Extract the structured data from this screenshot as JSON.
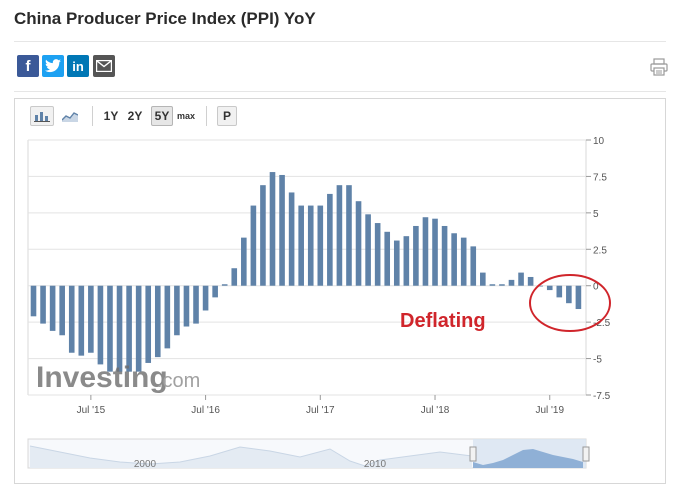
{
  "page": {
    "title": "China Producer Price Index (PPI) YoY"
  },
  "toolbar": {
    "chart_types": [
      "bar-chart-icon",
      "area-chart-icon"
    ],
    "ranges": [
      "1Y",
      "2Y",
      "5Y",
      "max"
    ],
    "active_range": "5Y",
    "p_label": "P"
  },
  "share": [
    "facebook-icon",
    "twitter-icon",
    "linkedin-icon",
    "email-icon"
  ],
  "annotation": {
    "text": "Deflating",
    "color": "#d0252b"
  },
  "watermark": {
    "brand": "Investing",
    "suffix": ".com"
  },
  "navigator": {
    "labels": [
      "2000",
      "2010"
    ]
  },
  "colors": {
    "bar": "#5f82a8",
    "accent": "#d0252b",
    "facebook": "#3b5998",
    "twitter": "#1da1f2",
    "linkedin": "#0077b5",
    "email": "#555555"
  },
  "chart_data": {
    "type": "bar",
    "title": "China Producer Price Index (PPI) YoY",
    "xlabel": "",
    "ylabel": "",
    "ylim": [
      -7.5,
      10
    ],
    "yticks": [
      "10",
      "7.5",
      "5",
      "2.5",
      "0",
      "-2.5",
      "-5",
      "-7.5"
    ],
    "xtick_labels": [
      "Jul '15",
      "Jul '16",
      "Jul '17",
      "Jul '18",
      "Jul '19"
    ],
    "categories": [
      "Jan 2015",
      "Feb 2015",
      "Mar 2015",
      "Apr 2015",
      "May 2015",
      "Jun 2015",
      "Jul 2015",
      "Aug 2015",
      "Sep 2015",
      "Oct 2015",
      "Nov 2015",
      "Dec 2015",
      "Jan 2016",
      "Feb 2016",
      "Mar 2016",
      "Apr 2016",
      "May 2016",
      "Jun 2016",
      "Jul 2016",
      "Aug 2016",
      "Sep 2016",
      "Oct 2016",
      "Nov 2016",
      "Dec 2016",
      "Jan 2017",
      "Feb 2017",
      "Mar 2017",
      "Apr 2017",
      "May 2017",
      "Jun 2017",
      "Jul 2017",
      "Aug 2017",
      "Sep 2017",
      "Oct 2017",
      "Nov 2017",
      "Dec 2017",
      "Jan 2018",
      "Feb 2018",
      "Mar 2018",
      "Apr 2018",
      "May 2018",
      "Jun 2018",
      "Jul 2018",
      "Aug 2018",
      "Sep 2018",
      "Oct 2018",
      "Nov 2018",
      "Dec 2018",
      "Jan 2019",
      "Feb 2019",
      "Mar 2019",
      "Apr 2019",
      "May 2019",
      "Jun 2019",
      "Jul 2019",
      "Aug 2019",
      "Sep 2019",
      "Oct 2019"
    ],
    "values": [
      -2.1,
      -2.6,
      -3.1,
      -3.4,
      -4.6,
      -4.8,
      -4.6,
      -5.4,
      -5.9,
      -5.9,
      -5.9,
      -5.9,
      -5.3,
      -4.9,
      -4.3,
      -3.4,
      -2.8,
      -2.6,
      -1.7,
      -0.8,
      0.1,
      1.2,
      3.3,
      5.5,
      6.9,
      7.8,
      7.6,
      6.4,
      5.5,
      5.5,
      5.5,
      6.3,
      6.9,
      6.9,
      5.8,
      4.9,
      4.3,
      3.7,
      3.1,
      3.4,
      4.1,
      4.7,
      4.6,
      4.1,
      3.6,
      3.3,
      2.7,
      0.9,
      0.1,
      0.1,
      0.4,
      0.9,
      0.6,
      0.0,
      -0.3,
      -0.8,
      -1.2,
      -1.6
    ]
  }
}
